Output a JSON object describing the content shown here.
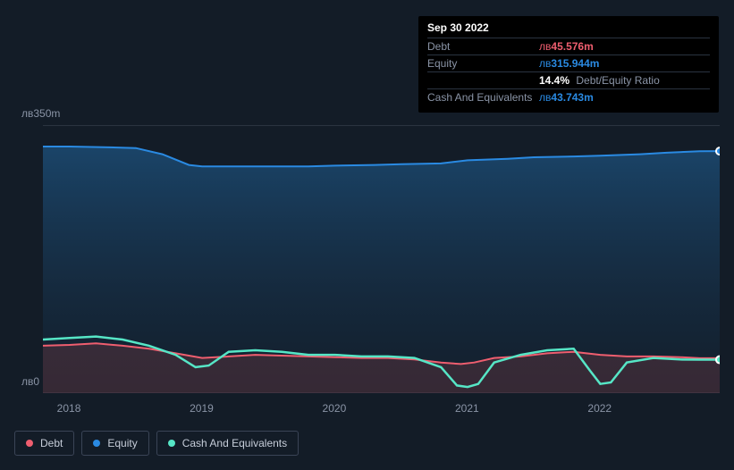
{
  "tooltip": {
    "date": "Sep 30 2022",
    "rows": [
      {
        "label": "Debt",
        "currency": "лв",
        "value": "45.576m",
        "color": "#ef5e6f"
      },
      {
        "label": "Equity",
        "currency": "лв",
        "value": "315.944m",
        "color": "#2a8ae2"
      },
      {
        "label": "",
        "pct": "14.4%",
        "sub": "Debt/Equity Ratio",
        "color": "#ffffff"
      },
      {
        "label": "Cash And Equivalents",
        "currency": "лв",
        "value": "43.743m",
        "color": "#2a8ae2"
      }
    ]
  },
  "chart": {
    "type": "area",
    "background": "#131c27",
    "plot_bg_top": "#1a4a6f",
    "plot_bg_bottom": "#16212f",
    "ylim": [
      0,
      350
    ],
    "y_ticks": [
      {
        "v": 350,
        "label": "лв350m"
      },
      {
        "v": 0,
        "label": "лв0"
      }
    ],
    "x_years": [
      2018,
      2019,
      2020,
      2021,
      2022
    ],
    "x_domain": [
      2017.8,
      2022.9
    ],
    "grid_color": "#2a3340",
    "series": {
      "equity": {
        "color": "#2a8ae2",
        "fill_top": "rgba(30,90,140,0.65)",
        "fill_bottom": "rgba(20,40,60,0.25)",
        "data": [
          [
            2017.8,
            322
          ],
          [
            2018.0,
            322
          ],
          [
            2018.3,
            321
          ],
          [
            2018.5,
            320
          ],
          [
            2018.7,
            312
          ],
          [
            2018.9,
            298
          ],
          [
            2019.0,
            296
          ],
          [
            2019.3,
            296
          ],
          [
            2019.5,
            296
          ],
          [
            2019.8,
            296
          ],
          [
            2020.0,
            297
          ],
          [
            2020.3,
            298
          ],
          [
            2020.5,
            299
          ],
          [
            2020.8,
            300
          ],
          [
            2021.0,
            304
          ],
          [
            2021.3,
            306
          ],
          [
            2021.5,
            308
          ],
          [
            2021.8,
            309
          ],
          [
            2022.0,
            310
          ],
          [
            2022.3,
            312
          ],
          [
            2022.5,
            314
          ],
          [
            2022.75,
            315.9
          ],
          [
            2022.9,
            316
          ]
        ]
      },
      "debt": {
        "color": "#ef5e6f",
        "fill": "rgba(120,60,70,0.35)",
        "data": [
          [
            2017.8,
            62
          ],
          [
            2018.0,
            63
          ],
          [
            2018.2,
            65
          ],
          [
            2018.4,
            62
          ],
          [
            2018.6,
            58
          ],
          [
            2018.8,
            52
          ],
          [
            2019.0,
            46
          ],
          [
            2019.2,
            48
          ],
          [
            2019.4,
            50
          ],
          [
            2019.6,
            49
          ],
          [
            2019.8,
            48
          ],
          [
            2020.0,
            47
          ],
          [
            2020.2,
            46
          ],
          [
            2020.4,
            46
          ],
          [
            2020.6,
            44
          ],
          [
            2020.8,
            40
          ],
          [
            2020.95,
            38
          ],
          [
            2021.05,
            40
          ],
          [
            2021.2,
            46
          ],
          [
            2021.4,
            48
          ],
          [
            2021.6,
            52
          ],
          [
            2021.8,
            54
          ],
          [
            2022.0,
            50
          ],
          [
            2022.2,
            48
          ],
          [
            2022.4,
            48
          ],
          [
            2022.6,
            47
          ],
          [
            2022.75,
            45.6
          ],
          [
            2022.9,
            45.6
          ]
        ]
      },
      "cash": {
        "color": "#56e6c6",
        "data": [
          [
            2017.8,
            70
          ],
          [
            2018.0,
            72
          ],
          [
            2018.2,
            74
          ],
          [
            2018.4,
            70
          ],
          [
            2018.6,
            62
          ],
          [
            2018.8,
            50
          ],
          [
            2018.95,
            34
          ],
          [
            2019.05,
            36
          ],
          [
            2019.2,
            54
          ],
          [
            2019.4,
            56
          ],
          [
            2019.6,
            54
          ],
          [
            2019.8,
            50
          ],
          [
            2020.0,
            50
          ],
          [
            2020.2,
            48
          ],
          [
            2020.4,
            48
          ],
          [
            2020.6,
            46
          ],
          [
            2020.8,
            34
          ],
          [
            2020.92,
            10
          ],
          [
            2021.0,
            8
          ],
          [
            2021.08,
            12
          ],
          [
            2021.2,
            40
          ],
          [
            2021.4,
            50
          ],
          [
            2021.6,
            56
          ],
          [
            2021.8,
            58
          ],
          [
            2021.92,
            30
          ],
          [
            2022.0,
            12
          ],
          [
            2022.08,
            14
          ],
          [
            2022.2,
            40
          ],
          [
            2022.4,
            46
          ],
          [
            2022.6,
            44
          ],
          [
            2022.75,
            43.7
          ],
          [
            2022.9,
            43.7
          ]
        ]
      }
    },
    "end_markers": [
      {
        "series": "equity",
        "color": "#2a8ae2"
      },
      {
        "series": "cash",
        "color": "#56e6c6"
      }
    ]
  },
  "legend": [
    {
      "label": "Debt",
      "color": "#ef5e6f"
    },
    {
      "label": "Equity",
      "color": "#2a8ae2"
    },
    {
      "label": "Cash And Equivalents",
      "color": "#56e6c6"
    }
  ]
}
